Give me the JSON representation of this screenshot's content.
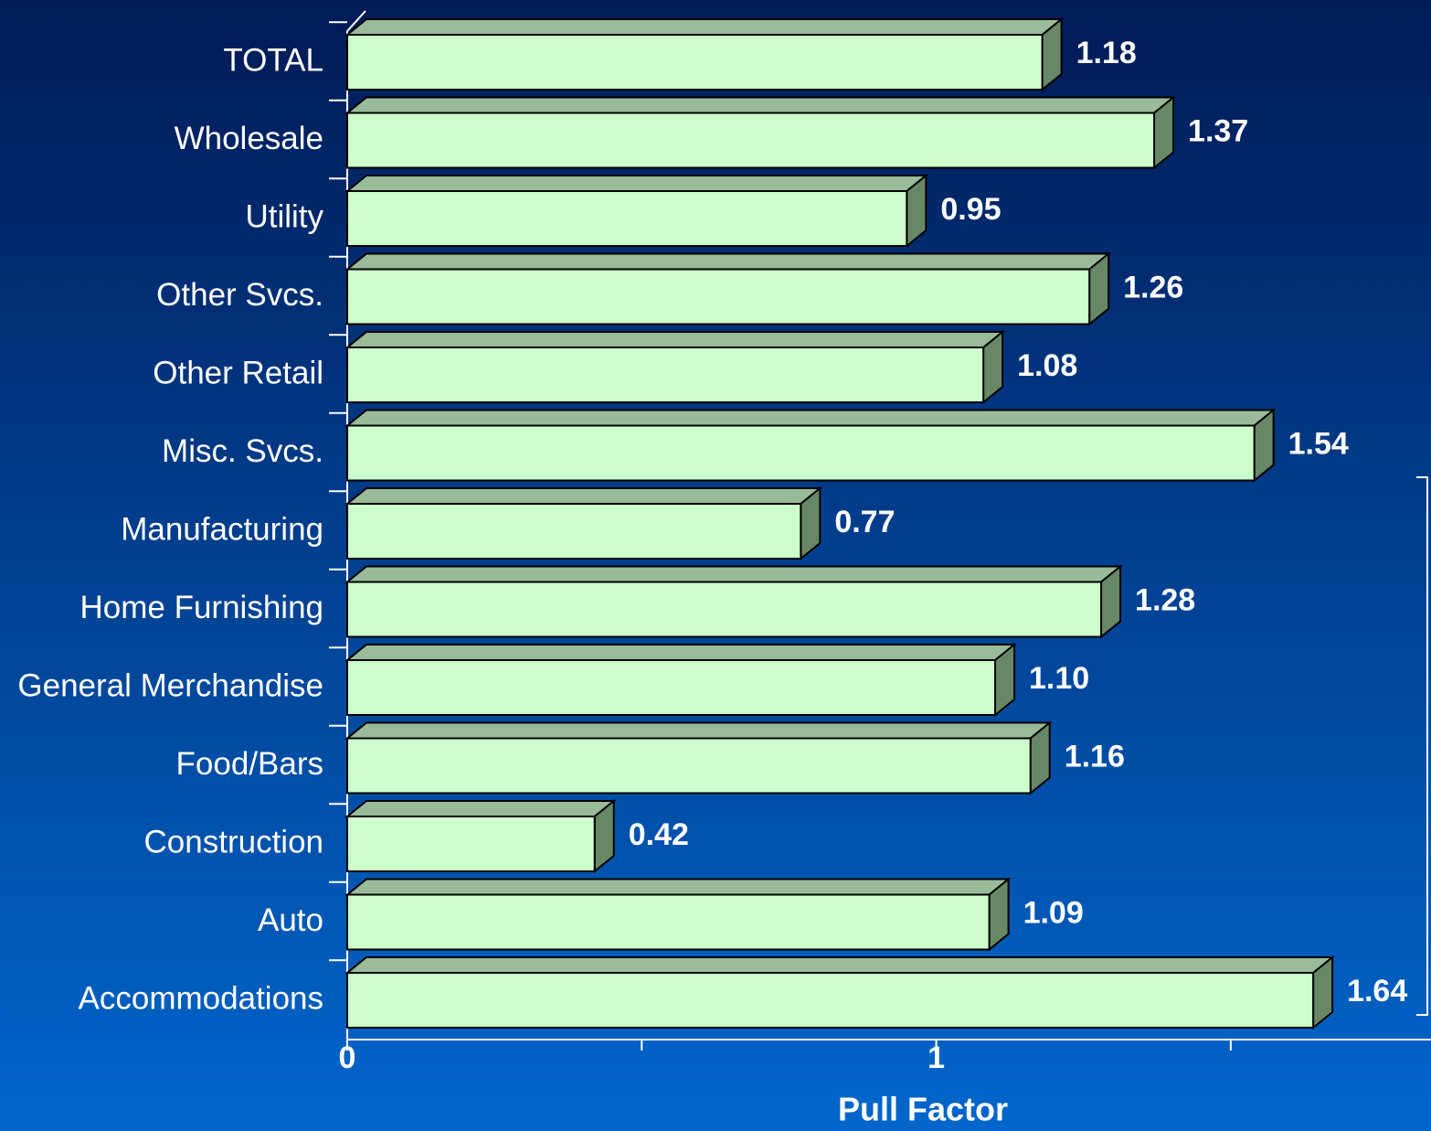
{
  "chart_data": {
    "type": "bar",
    "orientation": "horizontal",
    "three_d": true,
    "categories": [
      "TOTAL",
      "Wholesale",
      "Utility",
      "Other Svcs.",
      "Other Retail",
      "Misc. Svcs.",
      "Manufacturing",
      "Home Furnishing",
      "General Merchandise",
      "Food/Bars",
      "Construction",
      "Auto",
      "Accommodations"
    ],
    "values": [
      1.18,
      1.37,
      0.95,
      1.26,
      1.08,
      1.54,
      0.77,
      1.28,
      1.1,
      1.16,
      0.42,
      1.09,
      1.64
    ],
    "value_labels": [
      "1.18",
      "1.37",
      "0.95",
      "1.26",
      "1.08",
      "1.54",
      "0.77",
      "1.28",
      "1.10",
      "1.16",
      "0.42",
      "1.09",
      "1.64"
    ],
    "color": "#ccffcc",
    "top_color": "#99bb99",
    "side_color": "#668866",
    "xlabel": "Pull Factor",
    "xlim": [
      0,
      1.84
    ],
    "xticks": [
      0,
      1
    ],
    "minor_xticks": [
      0.5,
      1.5
    ],
    "grid": false
  }
}
